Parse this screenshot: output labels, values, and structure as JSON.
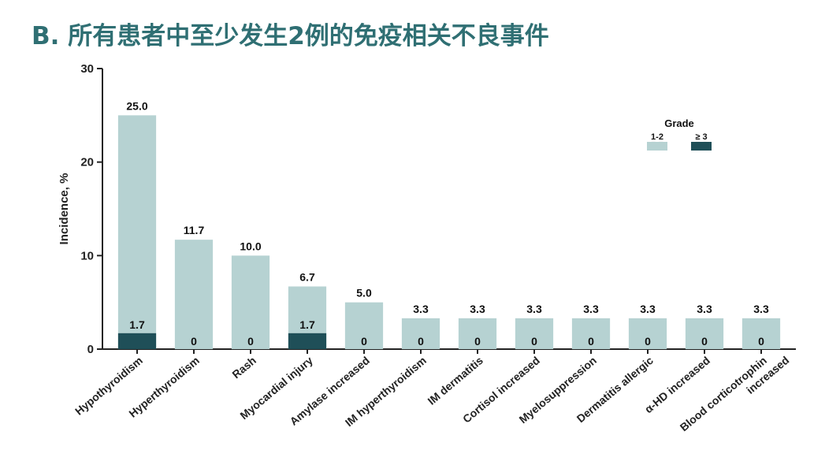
{
  "slide_title": "B. 所有患者中至少发生2例的免疫相关不良事件",
  "colors": {
    "title": "#2f6f73",
    "grade_1_2": "#b6d2d2",
    "grade_3_plus": "#1f4f58",
    "axis": "#222222"
  },
  "chart_data": {
    "type": "bar",
    "stacked": true,
    "ylabel": "Incidence, %",
    "xlabel": "",
    "ylim": [
      0,
      30
    ],
    "yticks": [
      0,
      10,
      20,
      30
    ],
    "grid": false,
    "legend_title": "Grade",
    "legend_position": "top-right",
    "categories": [
      "Hypothyroidism",
      "Hyperthyroidism",
      "Rash",
      "Myocardial injury",
      "Amylase increased",
      "IM hyperthyroidism",
      "IM dermatitis",
      "Cortisol increased",
      "Myelosuppression",
      "Dermatitis allergic",
      "α-HD increased",
      "Blood corticotrophin increased"
    ],
    "series": [
      {
        "name": "1-2",
        "color": "#b6d2d2",
        "values": [
          25.0,
          11.7,
          10.0,
          6.7,
          5.0,
          3.3,
          3.3,
          3.3,
          3.3,
          3.3,
          3.3,
          3.3
        ],
        "labels": [
          "25.0",
          "11.7",
          "10.0",
          "6.7",
          "5.0",
          "3.3",
          "3.3",
          "3.3",
          "3.3",
          "3.3",
          "3.3",
          "3.3"
        ]
      },
      {
        "name": "≥ 3",
        "color": "#1f4f58",
        "values": [
          1.7,
          0,
          0,
          1.7,
          0,
          0,
          0,
          0,
          0,
          0,
          0,
          0
        ],
        "labels": [
          "1.7",
          "0",
          "0",
          "1.7",
          "0",
          "0",
          "0",
          "0",
          "0",
          "0",
          "0",
          "0"
        ]
      }
    ]
  }
}
